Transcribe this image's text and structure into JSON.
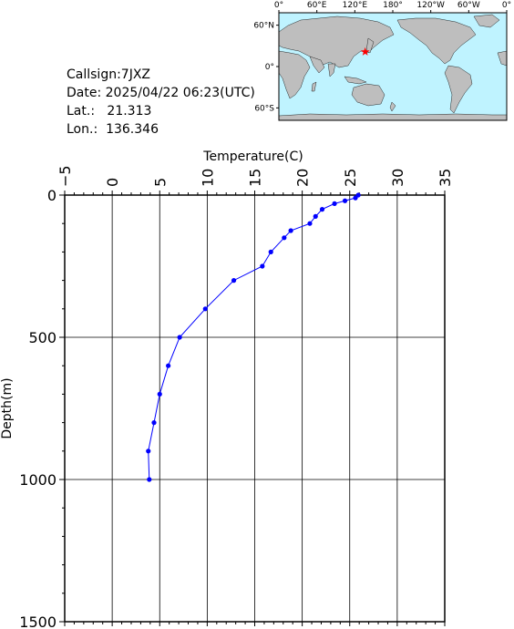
{
  "station": {
    "callsign_label": "Callsign:",
    "callsign": "7JXZ",
    "date_label": "Date:",
    "date": "2025/04/22 06:23(UTC)",
    "lat_label": "Lat.:",
    "lat": "21.313",
    "lon_label": "Lon.:",
    "lon": "136.346"
  },
  "map": {
    "lon_ticks": [
      "0°",
      "60°E",
      "120°E",
      "180°",
      "120°W",
      "60°W",
      "0°"
    ],
    "lat_ticks": [
      "60°N",
      "0°",
      "60°S"
    ],
    "ocean_color": "#bff3ff",
    "land_color": "#bebebe",
    "marker_color": "#ff0000",
    "marker": {
      "lon": 136.346,
      "lat": 21.313
    }
  },
  "chart_data": {
    "type": "line",
    "title": "",
    "xlabel": "Temperature(C)",
    "ylabel": "Depth(m)",
    "xlim": [
      -5,
      35
    ],
    "ylim": [
      1500,
      0
    ],
    "x_ticks": [
      "-5",
      "0",
      "5",
      "10",
      "15",
      "20",
      "25",
      "30",
      "35"
    ],
    "y_ticks": [
      "0",
      "500",
      "1000",
      "1500"
    ],
    "grid": true,
    "series_color": "#0000ff",
    "series": [
      {
        "temperature": [
          25.9,
          25.6,
          24.5,
          23.4,
          22.1,
          21.4,
          20.8,
          18.8,
          18.1,
          16.7,
          15.8,
          12.8,
          9.8,
          7.1,
          5.9,
          5.0,
          4.4,
          3.8,
          3.9
        ],
        "depth": [
          0,
          10,
          20,
          30,
          50,
          75,
          100,
          125,
          150,
          200,
          250,
          300,
          400,
          500,
          600,
          700,
          800,
          900,
          1000
        ]
      }
    ]
  }
}
